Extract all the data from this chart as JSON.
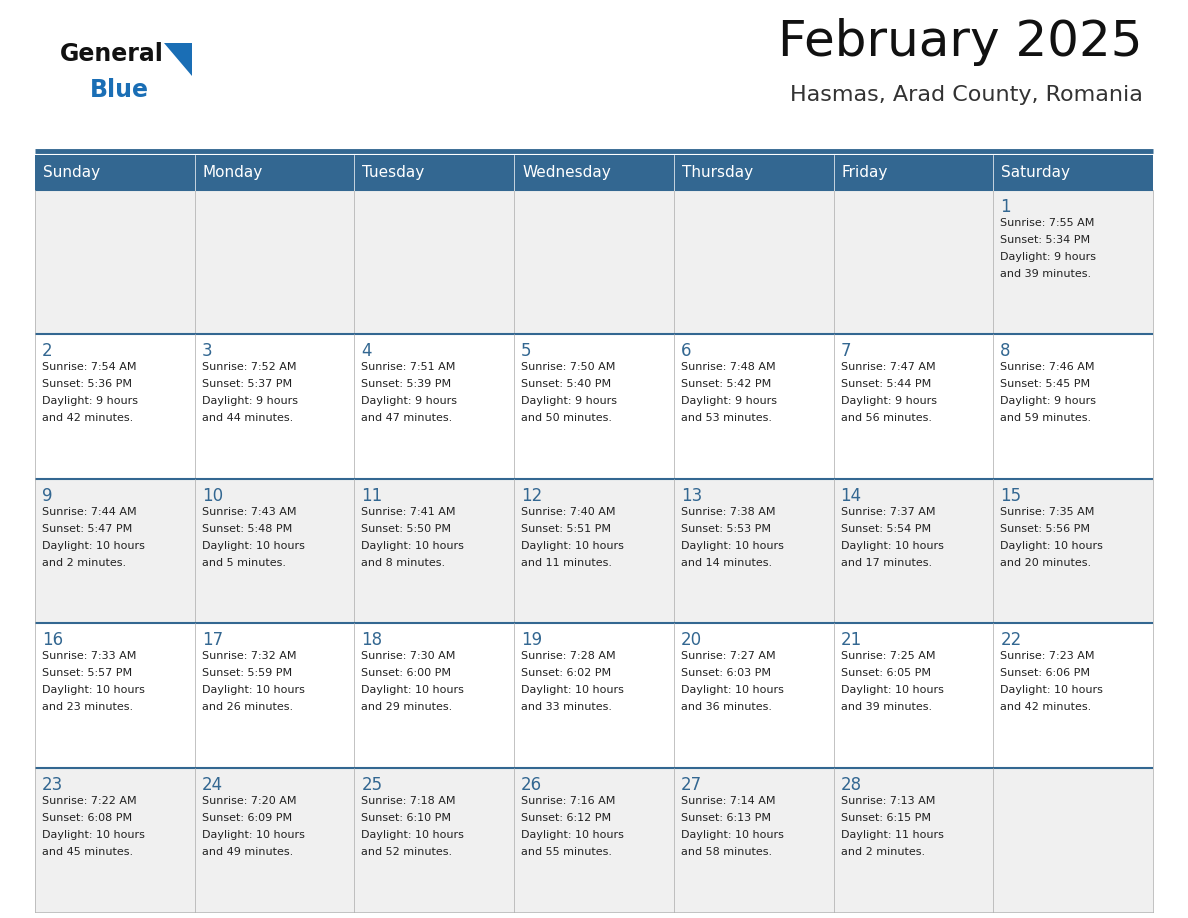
{
  "title": "February 2025",
  "subtitle": "Hasmas, Arad County, Romania",
  "days_of_week": [
    "Sunday",
    "Monday",
    "Tuesday",
    "Wednesday",
    "Thursday",
    "Friday",
    "Saturday"
  ],
  "header_bg": "#336791",
  "header_text": "#ffffff",
  "row_bg_odd": "#f0f0f0",
  "row_bg_even": "#ffffff",
  "cell_border": "#aaaaaa",
  "week_sep_color": "#336791",
  "day_number_color": "#336791",
  "info_text_color": "#222222",
  "logo_general_color": "#111111",
  "logo_blue_color": "#1a6eb5",
  "logo_triangle_color": "#1a6eb5",
  "title_color": "#111111",
  "subtitle_color": "#333333",
  "sep_line_color": "#336791",
  "calendar_data": [
    [
      null,
      null,
      null,
      null,
      null,
      null,
      {
        "day": "1",
        "sunrise": "7:55 AM",
        "sunset": "5:34 PM",
        "daylight": "9 hours and 39 minutes."
      }
    ],
    [
      {
        "day": "2",
        "sunrise": "7:54 AM",
        "sunset": "5:36 PM",
        "daylight": "9 hours and 42 minutes."
      },
      {
        "day": "3",
        "sunrise": "7:52 AM",
        "sunset": "5:37 PM",
        "daylight": "9 hours and 44 minutes."
      },
      {
        "day": "4",
        "sunrise": "7:51 AM",
        "sunset": "5:39 PM",
        "daylight": "9 hours and 47 minutes."
      },
      {
        "day": "5",
        "sunrise": "7:50 AM",
        "sunset": "5:40 PM",
        "daylight": "9 hours and 50 minutes."
      },
      {
        "day": "6",
        "sunrise": "7:48 AM",
        "sunset": "5:42 PM",
        "daylight": "9 hours and 53 minutes."
      },
      {
        "day": "7",
        "sunrise": "7:47 AM",
        "sunset": "5:44 PM",
        "daylight": "9 hours and 56 minutes."
      },
      {
        "day": "8",
        "sunrise": "7:46 AM",
        "sunset": "5:45 PM",
        "daylight": "9 hours and 59 minutes."
      }
    ],
    [
      {
        "day": "9",
        "sunrise": "7:44 AM",
        "sunset": "5:47 PM",
        "daylight": "10 hours and 2 minutes."
      },
      {
        "day": "10",
        "sunrise": "7:43 AM",
        "sunset": "5:48 PM",
        "daylight": "10 hours and 5 minutes."
      },
      {
        "day": "11",
        "sunrise": "7:41 AM",
        "sunset": "5:50 PM",
        "daylight": "10 hours and 8 minutes."
      },
      {
        "day": "12",
        "sunrise": "7:40 AM",
        "sunset": "5:51 PM",
        "daylight": "10 hours and 11 minutes."
      },
      {
        "day": "13",
        "sunrise": "7:38 AM",
        "sunset": "5:53 PM",
        "daylight": "10 hours and 14 minutes."
      },
      {
        "day": "14",
        "sunrise": "7:37 AM",
        "sunset": "5:54 PM",
        "daylight": "10 hours and 17 minutes."
      },
      {
        "day": "15",
        "sunrise": "7:35 AM",
        "sunset": "5:56 PM",
        "daylight": "10 hours and 20 minutes."
      }
    ],
    [
      {
        "day": "16",
        "sunrise": "7:33 AM",
        "sunset": "5:57 PM",
        "daylight": "10 hours and 23 minutes."
      },
      {
        "day": "17",
        "sunrise": "7:32 AM",
        "sunset": "5:59 PM",
        "daylight": "10 hours and 26 minutes."
      },
      {
        "day": "18",
        "sunrise": "7:30 AM",
        "sunset": "6:00 PM",
        "daylight": "10 hours and 29 minutes."
      },
      {
        "day": "19",
        "sunrise": "7:28 AM",
        "sunset": "6:02 PM",
        "daylight": "10 hours and 33 minutes."
      },
      {
        "day": "20",
        "sunrise": "7:27 AM",
        "sunset": "6:03 PM",
        "daylight": "10 hours and 36 minutes."
      },
      {
        "day": "21",
        "sunrise": "7:25 AM",
        "sunset": "6:05 PM",
        "daylight": "10 hours and 39 minutes."
      },
      {
        "day": "22",
        "sunrise": "7:23 AM",
        "sunset": "6:06 PM",
        "daylight": "10 hours and 42 minutes."
      }
    ],
    [
      {
        "day": "23",
        "sunrise": "7:22 AM",
        "sunset": "6:08 PM",
        "daylight": "10 hours and 45 minutes."
      },
      {
        "day": "24",
        "sunrise": "7:20 AM",
        "sunset": "6:09 PM",
        "daylight": "10 hours and 49 minutes."
      },
      {
        "day": "25",
        "sunrise": "7:18 AM",
        "sunset": "6:10 PM",
        "daylight": "10 hours and 52 minutes."
      },
      {
        "day": "26",
        "sunrise": "7:16 AM",
        "sunset": "6:12 PM",
        "daylight": "10 hours and 55 minutes."
      },
      {
        "day": "27",
        "sunrise": "7:14 AM",
        "sunset": "6:13 PM",
        "daylight": "10 hours and 58 minutes."
      },
      {
        "day": "28",
        "sunrise": "7:13 AM",
        "sunset": "6:15 PM",
        "daylight": "11 hours and 2 minutes."
      },
      null
    ]
  ]
}
